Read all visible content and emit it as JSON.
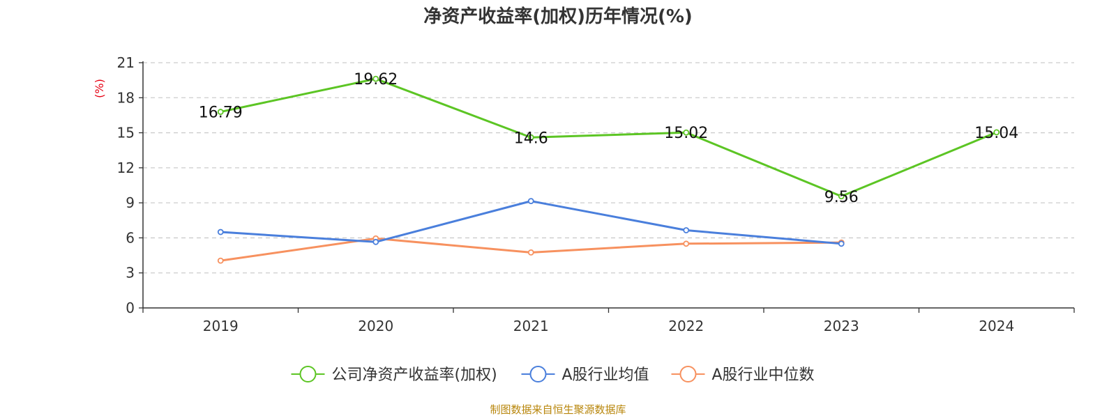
{
  "chart_data": {
    "type": "line",
    "title": "净资产收益率(加权)历年情况(%)",
    "ylabel": "(%)",
    "categories": [
      "2019",
      "2020",
      "2021",
      "2022",
      "2023",
      "2024"
    ],
    "ylim": [
      0,
      21
    ],
    "yticks": [
      0,
      3,
      6,
      9,
      12,
      15,
      18,
      21
    ],
    "grid": true,
    "legend_position": "bottom",
    "series": [
      {
        "name": "公司净资产收益率(加权)",
        "color": "#5cc524",
        "values": [
          16.79,
          19.62,
          14.6,
          15.02,
          9.56,
          15.04
        ],
        "labels": [
          "16.79",
          "19.62",
          "14.6",
          "15.02",
          "9.56",
          "15.04"
        ]
      },
      {
        "name": "A股行业均值",
        "color": "#4a7fdc",
        "values": [
          6.5,
          5.65,
          9.15,
          6.65,
          5.5,
          null
        ]
      },
      {
        "name": "A股行业中位数",
        "color": "#f7915f",
        "values": [
          4.05,
          5.95,
          4.75,
          5.5,
          5.6,
          null
        ]
      }
    ]
  },
  "footer": {
    "source": "制图数据来自恒生聚源数据库"
  }
}
